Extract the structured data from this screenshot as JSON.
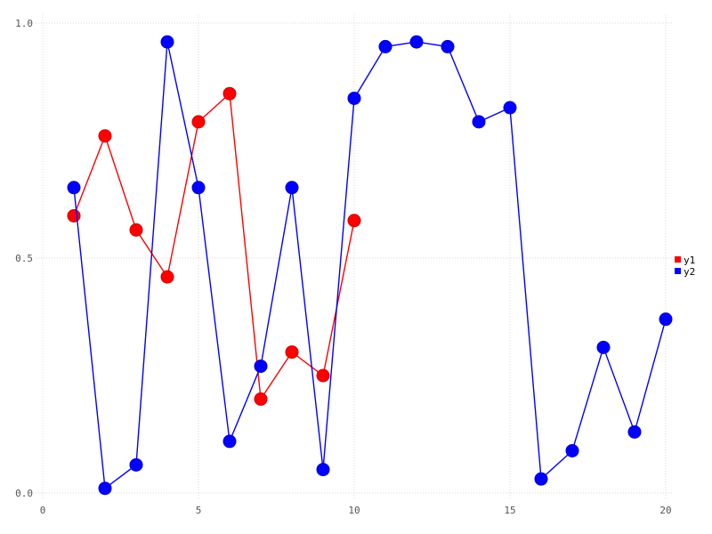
{
  "chart_data": {
    "type": "line",
    "title": "",
    "xlabel": "",
    "ylabel": "",
    "xlim": [
      0,
      20
    ],
    "ylim": [
      0.0,
      1.0
    ],
    "x_ticks": [
      0,
      5,
      10,
      15,
      20
    ],
    "x_tick_labels": [
      "0",
      "5",
      "10",
      "15",
      "20"
    ],
    "y_ticks": [
      0.0,
      0.5,
      1.0
    ],
    "y_tick_labels": [
      "0.0",
      "0.5",
      "1.0"
    ],
    "grid": true,
    "grid_style": "dotted",
    "background_color": "#ffffff",
    "grid_color": "#d9d9d9",
    "tick_label_color": "#545454",
    "legend_position": "right-middle",
    "legend_entries": [
      "y1",
      "y2"
    ],
    "series": [
      {
        "name": "y1",
        "color": "#ff0000",
        "marker": "circle",
        "x": [
          1,
          2,
          3,
          4,
          5,
          6,
          7,
          8,
          9,
          10
        ],
        "y": [
          0.59,
          0.76,
          0.56,
          0.46,
          0.79,
          0.85,
          0.2,
          0.3,
          0.25,
          0.58
        ]
      },
      {
        "name": "y2",
        "color": "#0000ff",
        "marker": "circle",
        "x": [
          1,
          2,
          3,
          4,
          5,
          6,
          7,
          8,
          9,
          10,
          11,
          12,
          13,
          14,
          15,
          16,
          17,
          18,
          19,
          20
        ],
        "y": [
          0.65,
          0.01,
          0.06,
          0.96,
          0.65,
          0.11,
          0.27,
          0.65,
          0.05,
          0.84,
          0.95,
          0.96,
          0.95,
          0.79,
          0.82,
          0.03,
          0.09,
          0.31,
          0.13,
          0.37
        ]
      }
    ]
  }
}
